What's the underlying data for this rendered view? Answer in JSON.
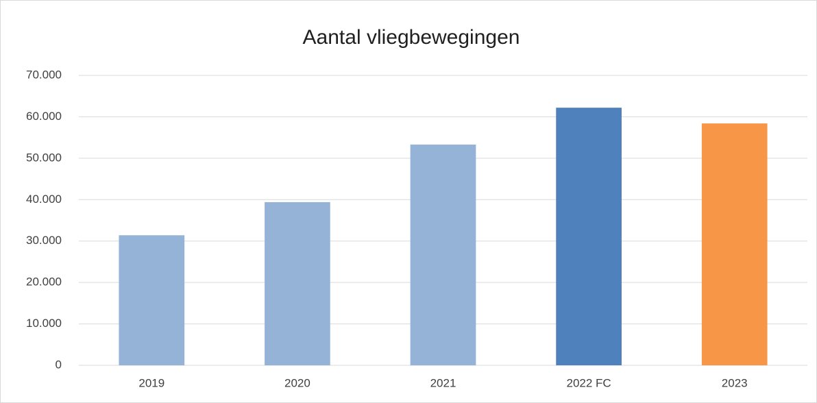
{
  "chart_data": {
    "type": "bar",
    "title": "Aantal vliegbewegingen",
    "categories": [
      "2019",
      "2020",
      "2021",
      "2022 FC",
      "2023"
    ],
    "values": [
      31400,
      39400,
      53300,
      62200,
      58400
    ],
    "colors": [
      "#95b3d7",
      "#95b3d7",
      "#95b3d7",
      "#4f81bd",
      "#f79646"
    ],
    "ylim": [
      0,
      70000
    ],
    "yticks": [
      0,
      {
        "value": 10000,
        "label": "10.000"
      },
      {
        "value": 20000,
        "label": "20.000"
      },
      {
        "value": 30000,
        "label": "30.000"
      },
      {
        "value": 40000,
        "label": "40.000"
      },
      {
        "value": 50000,
        "label": "50.000"
      },
      {
        "value": 60000,
        "label": "60.000"
      },
      {
        "value": 70000,
        "label": "70.000"
      }
    ],
    "grid": true
  }
}
